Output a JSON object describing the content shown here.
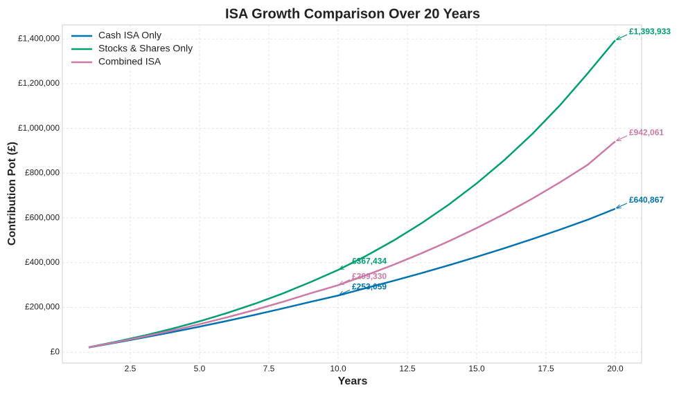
{
  "chart_data": {
    "type": "line",
    "title": "ISA Growth Comparison Over 20 Years",
    "x_label": "Years",
    "y_label": "Contribution Pot (£)",
    "x": [
      1,
      2,
      3,
      4,
      5,
      6,
      7,
      8,
      9,
      10,
      11,
      12,
      13,
      14,
      15,
      16,
      17,
      18,
      19,
      20
    ],
    "series": [
      {
        "name": "Cash ISA Only",
        "color": "#0072b2",
        "values": [
          20880,
          42680,
          65440,
          89200,
          114000,
          139900,
          166950,
          195180,
          224650,
          253059,
          286200,
          318900,
          353000,
          388600,
          425800,
          464600,
          505100,
          547400,
          591500,
          640867
        ]
      },
      {
        "name": "Stocks & Shares Only",
        "color": "#009e73",
        "values": [
          22180,
          46778,
          74057,
          104309,
          137859,
          175066,
          216328,
          262088,
          312836,
          367434,
          429664,
          498677,
          575213,
          660091,
          754221,
          858611,
          974380,
          1102767,
          1245149,
          1393933
        ]
      },
      {
        "name": "Combined ISA",
        "color": "#cc79a7",
        "values": [
          21500,
          44613,
          69459,
          96168,
          124881,
          155747,
          188928,
          224598,
          262943,
          299330,
          343280,
          390526,
          441315,
          495914,
          554608,
          617704,
          685532,
          758447,
          836831,
          942061
        ]
      }
    ],
    "annotations": [
      {
        "text": "£253,059",
        "x": 10,
        "y": 253059,
        "color": "#0072b2"
      },
      {
        "text": "£367,434",
        "x": 10,
        "y": 367434,
        "color": "#009e73"
      },
      {
        "text": "£299,330",
        "x": 10,
        "y": 299330,
        "color": "#cc79a7"
      },
      {
        "text": "£640,867",
        "x": 20,
        "y": 640867,
        "color": "#0072b2"
      },
      {
        "text": "£1,393,933",
        "x": 20,
        "y": 1393933,
        "color": "#009e73"
      },
      {
        "text": "£942,061",
        "x": 20,
        "y": 942061,
        "color": "#cc79a7"
      }
    ],
    "xlim": [
      0.05,
      20.95
    ],
    "ylim": [
      -48700,
      1462600
    ],
    "xticks": [
      2.5,
      {
        "value": 5,
        "label": "5.0"
      },
      7.5,
      {
        "value": 10,
        "label": "10.0"
      },
      12.5,
      {
        "value": 15,
        "label": "15.0"
      },
      17.5,
      {
        "value": 20,
        "label": "20.0"
      }
    ],
    "yticks": [
      {
        "value": 0,
        "label": "£0"
      },
      {
        "value": 200000,
        "label": "£200,000"
      },
      {
        "value": 400000,
        "label": "£400,000"
      },
      {
        "value": 600000,
        "label": "£600,000"
      },
      {
        "value": 800000,
        "label": "£800,000"
      },
      {
        "value": 1000000,
        "label": "£1,000,000"
      },
      {
        "value": 1200000,
        "label": "£1,200,000"
      },
      {
        "value": 1400000,
        "label": "£1,400,000"
      }
    ],
    "grid": true,
    "legend_position": "upper left"
  }
}
